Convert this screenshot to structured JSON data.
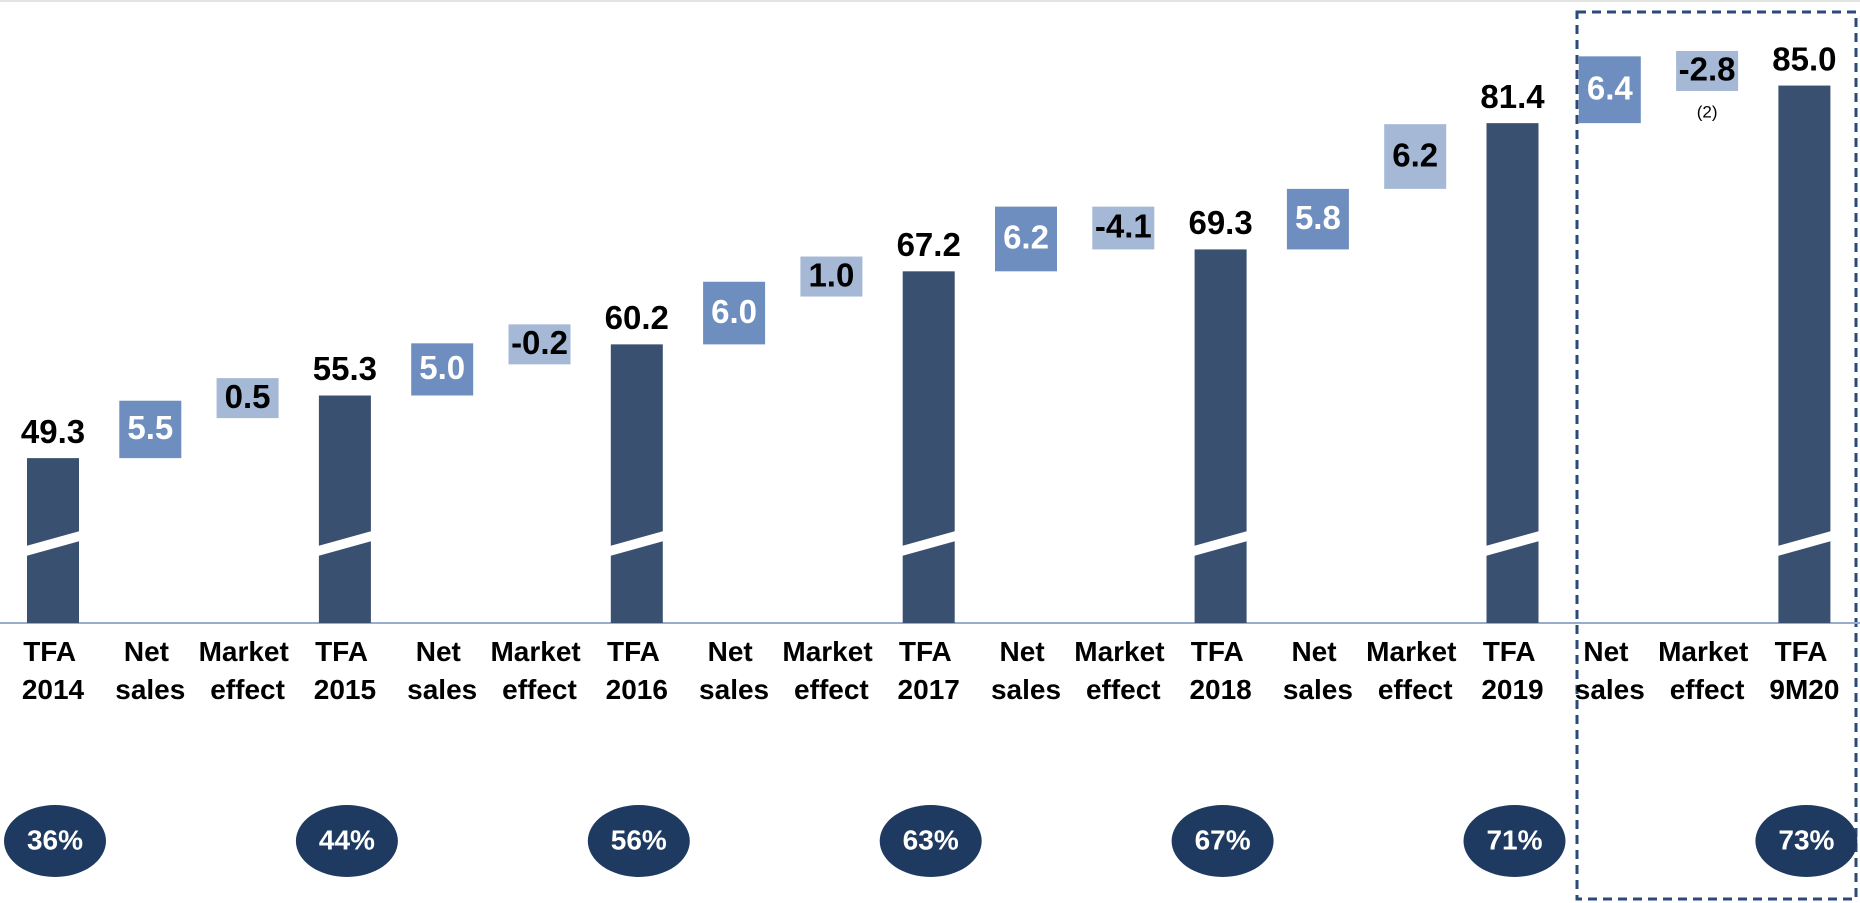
{
  "chart_data": {
    "type": "waterfall",
    "categories": [
      "TFA 2014",
      "Net sales",
      "Market effect",
      "TFA 2015",
      "Net sales",
      "Market effect",
      "TFA 2016",
      "Net sales",
      "Market effect",
      "TFA 2017",
      "Net sales",
      "Market effect",
      "TFA 2018",
      "Net sales",
      "Market effect",
      "TFA 2019",
      "Net sales",
      "Market effect",
      "TFA 9M20"
    ],
    "measure": [
      "total",
      "relative",
      "relative",
      "total",
      "relative",
      "relative",
      "total",
      "relative",
      "relative",
      "total",
      "relative",
      "relative",
      "total",
      "relative",
      "relative",
      "total",
      "relative",
      "relative",
      "total"
    ],
    "values": [
      49.3,
      5.5,
      0.5,
      55.3,
      5.0,
      -0.2,
      60.2,
      6.0,
      1.0,
      67.2,
      6.2,
      -4.1,
      69.3,
      5.8,
      6.2,
      81.4,
      6.4,
      -2.8,
      85.0
    ],
    "value_labels": [
      "49.3",
      "5.5",
      "0.5",
      "55.3",
      "5.0",
      "-0.2",
      "60.2",
      "6.0",
      "1.0",
      "67.2",
      "6.2",
      "-4.1",
      "69.3",
      "5.8",
      "6.2",
      "81.4",
      "6.4",
      "-2.8",
      "85.0"
    ],
    "colors": [
      "#3a5070",
      "#6d8ebf",
      "#a5b8d6",
      "#3a5070",
      "#6d8ebf",
      "#a5b8d6",
      "#3a5070",
      "#6d8ebf",
      "#a5b8d6",
      "#3a5070",
      "#6d8ebf",
      "#a5b8d6",
      "#3a5070",
      "#6d8ebf",
      "#a5b8d6",
      "#3a5070",
      "#6d8ebf",
      "#a5b8d6",
      "#3a5070"
    ],
    "label_colors": [
      "#000000",
      "#ffffff",
      "#000000",
      "#000000",
      "#ffffff",
      "#000000",
      "#000000",
      "#ffffff",
      "#000000",
      "#000000",
      "#ffffff",
      "#000000",
      "#000000",
      "#ffffff",
      "#000000",
      "#000000",
      "#ffffff",
      "#000000",
      "#000000"
    ],
    "ylim": [
      33.5,
      93.2
    ],
    "shares": [
      36,
      null,
      null,
      44,
      null,
      null,
      56,
      null,
      null,
      63,
      null,
      null,
      67,
      null,
      null,
      71,
      null,
      null,
      73
    ],
    "share_labels": [
      "36%",
      null,
      null,
      "44%",
      null,
      null,
      "56%",
      null,
      null,
      "63%",
      null,
      null,
      "67%",
      null,
      null,
      "71%",
      null,
      null,
      "73%"
    ],
    "share_color": "#1f3a60",
    "note": "(2)"
  }
}
